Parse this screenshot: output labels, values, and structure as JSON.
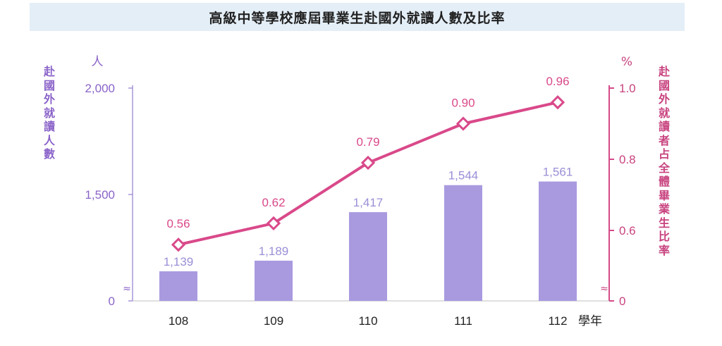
{
  "title": "高級中等學校應屆畢業生赴國外就讀人數及比率",
  "chart_data": {
    "type": "bar",
    "categories": [
      "108",
      "109",
      "110",
      "111",
      "112"
    ],
    "x_unit": "學年",
    "series": [
      {
        "kind": "bar",
        "axis": "left",
        "values": [
          1139,
          1189,
          1417,
          1544,
          1561
        ],
        "labels": [
          "1,139",
          "1,189",
          "1,417",
          "1,544",
          "1,561"
        ]
      },
      {
        "kind": "line",
        "axis": "right",
        "values": [
          0.56,
          0.62,
          0.79,
          0.9,
          0.96
        ],
        "labels": [
          "0.56",
          "0.62",
          "0.79",
          "0.90",
          "0.96"
        ]
      }
    ],
    "left_axis": {
      "label": "赴國外就讀人數",
      "unit": "人",
      "ticks": [
        {
          "value": 0,
          "label": "0"
        },
        {
          "value": 1500,
          "label": "1,500"
        },
        {
          "value": 2000,
          "label": "2,000"
        }
      ],
      "axis_break": true
    },
    "right_axis": {
      "label": "赴國外就讀者占全體畢業生比率",
      "unit": "%",
      "ticks": [
        {
          "value": 0,
          "label": "0"
        },
        {
          "value": 0.6,
          "label": "0.6"
        },
        {
          "value": 0.8,
          "label": "0.8"
        },
        {
          "value": 1.0,
          "label": "1.0"
        }
      ],
      "axis_break": true
    },
    "break_symbol": "≈",
    "grid": false,
    "colors": {
      "bar": "#a99ae0",
      "bar_label": "#9a8fd6",
      "line": "#d9498a",
      "left_axis": "#9b85d4",
      "left_label": "#8a63c9",
      "right_axis": "#d54a8a",
      "right_label": "#c8437f"
    }
  }
}
